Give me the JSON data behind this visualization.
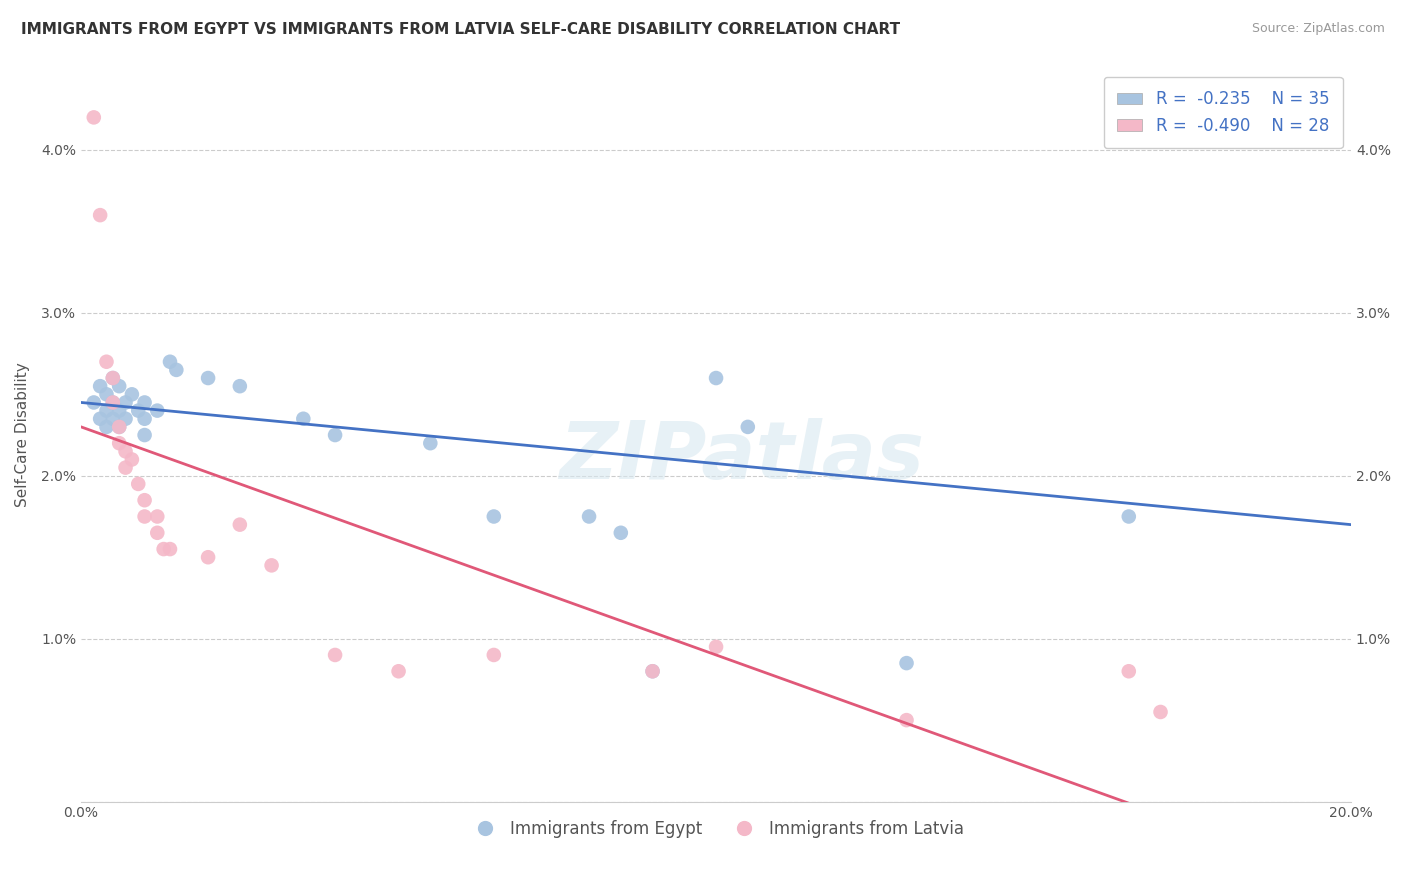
{
  "title": "IMMIGRANTS FROM EGYPT VS IMMIGRANTS FROM LATVIA SELF-CARE DISABILITY CORRELATION CHART",
  "source": "Source: ZipAtlas.com",
  "ylabel": "Self-Care Disability",
  "xlim": [
    0.0,
    0.2
  ],
  "ylim": [
    0.0,
    0.045
  ],
  "yticks": [
    0.0,
    0.01,
    0.02,
    0.03,
    0.04
  ],
  "ytick_labels": [
    "",
    "1.0%",
    "2.0%",
    "3.0%",
    "4.0%"
  ],
  "xticks": [
    0.0,
    0.05,
    0.1,
    0.15,
    0.2
  ],
  "xtick_labels": [
    "0.0%",
    "",
    "",
    "",
    "20.0%"
  ],
  "legend_r1": "-0.235",
  "legend_n1": "35",
  "legend_r2": "-0.490",
  "legend_n2": "28",
  "egypt_color": "#a8c4e0",
  "latvia_color": "#f4b8c8",
  "egypt_line_color": "#4472c4",
  "latvia_line_color": "#e05878",
  "egypt_scatter": [
    [
      0.002,
      0.0245
    ],
    [
      0.003,
      0.0255
    ],
    [
      0.003,
      0.0235
    ],
    [
      0.004,
      0.025
    ],
    [
      0.004,
      0.024
    ],
    [
      0.004,
      0.023
    ],
    [
      0.005,
      0.026
    ],
    [
      0.005,
      0.0245
    ],
    [
      0.005,
      0.0235
    ],
    [
      0.006,
      0.0255
    ],
    [
      0.006,
      0.024
    ],
    [
      0.006,
      0.023
    ],
    [
      0.007,
      0.0245
    ],
    [
      0.007,
      0.0235
    ],
    [
      0.008,
      0.025
    ],
    [
      0.009,
      0.024
    ],
    [
      0.01,
      0.0245
    ],
    [
      0.01,
      0.0235
    ],
    [
      0.01,
      0.0225
    ],
    [
      0.012,
      0.024
    ],
    [
      0.014,
      0.027
    ],
    [
      0.015,
      0.0265
    ],
    [
      0.02,
      0.026
    ],
    [
      0.025,
      0.0255
    ],
    [
      0.035,
      0.0235
    ],
    [
      0.04,
      0.0225
    ],
    [
      0.055,
      0.022
    ],
    [
      0.065,
      0.0175
    ],
    [
      0.08,
      0.0175
    ],
    [
      0.085,
      0.0165
    ],
    [
      0.09,
      0.008
    ],
    [
      0.1,
      0.026
    ],
    [
      0.105,
      0.023
    ],
    [
      0.13,
      0.0085
    ],
    [
      0.165,
      0.0175
    ]
  ],
  "latvia_scatter": [
    [
      0.002,
      0.042
    ],
    [
      0.003,
      0.036
    ],
    [
      0.004,
      0.027
    ],
    [
      0.005,
      0.026
    ],
    [
      0.005,
      0.0245
    ],
    [
      0.006,
      0.023
    ],
    [
      0.006,
      0.022
    ],
    [
      0.007,
      0.0215
    ],
    [
      0.007,
      0.0205
    ],
    [
      0.008,
      0.021
    ],
    [
      0.009,
      0.0195
    ],
    [
      0.01,
      0.0185
    ],
    [
      0.01,
      0.0175
    ],
    [
      0.012,
      0.0175
    ],
    [
      0.012,
      0.0165
    ],
    [
      0.013,
      0.0155
    ],
    [
      0.014,
      0.0155
    ],
    [
      0.02,
      0.015
    ],
    [
      0.025,
      0.017
    ],
    [
      0.03,
      0.0145
    ],
    [
      0.04,
      0.009
    ],
    [
      0.05,
      0.008
    ],
    [
      0.065,
      0.009
    ],
    [
      0.09,
      0.008
    ],
    [
      0.1,
      0.0095
    ],
    [
      0.13,
      0.005
    ],
    [
      0.165,
      0.008
    ],
    [
      0.17,
      0.0055
    ]
  ],
  "watermark": "ZIPatlas",
  "background_color": "#ffffff",
  "grid_color": "#cccccc",
  "title_fontsize": 11,
  "axis_label_fontsize": 11,
  "tick_fontsize": 10
}
